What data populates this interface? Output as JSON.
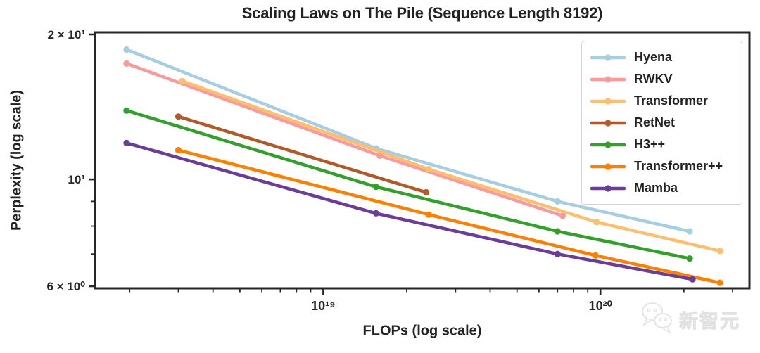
{
  "watermark": {
    "text": "新智元"
  },
  "chart_data": {
    "type": "line",
    "title": "Scaling Laws on The Pile (Sequence Length 8192)",
    "xlabel": "FLOPs (log scale)",
    "ylabel": "Perplexity (log scale)",
    "x_scale": "log",
    "y_scale": "log",
    "xlim": [
      1.5e+18,
      3.45e+20
    ],
    "ylim": [
      5.94,
      20.2
    ],
    "grid": false,
    "legend_position": "upper right",
    "axis_color": "#262626",
    "text_color": "#222222",
    "x_major_ticks": [
      {
        "label": "10¹⁹",
        "value": 1e+19
      },
      {
        "label": "10²⁰",
        "value": 1e+20
      }
    ],
    "x_minor_ticks": [
      2e+18,
      3e+18,
      4e+18,
      5e+18,
      6e+18,
      7e+18,
      8e+18,
      9e+18,
      2e+19,
      3e+19,
      4e+19,
      5e+19,
      6e+19,
      7e+19,
      8e+19,
      9e+19,
      2e+20,
      3e+20
    ],
    "y_major_ticks": [
      {
        "label": "2 × 10¹",
        "value": 20
      },
      {
        "label": "10¹",
        "value": 10
      },
      {
        "label": "6 × 10⁰",
        "value": 6
      }
    ],
    "y_minor_ticks": [
      9,
      8,
      7
    ],
    "series": [
      {
        "name": "Hyena",
        "color": "#a6cee3",
        "points": [
          [
            1.95e+18,
            18.6
          ],
          [
            1.55e+19,
            11.6
          ],
          [
            7e+19,
            9.0
          ],
          [
            2.1e+20,
            7.8
          ]
        ]
      },
      {
        "name": "RWKV",
        "color": "#fb9a99",
        "points": [
          [
            1.95e+18,
            17.4
          ],
          [
            1.6e+19,
            11.2
          ],
          [
            7.3e+19,
            8.4
          ]
        ]
      },
      {
        "name": "Transformer",
        "color": "#fdbf6f",
        "points": [
          [
            3.1e+18,
            16.0
          ],
          [
            2.4e+19,
            10.5
          ],
          [
            9.7e+19,
            8.15
          ],
          [
            2.7e+20,
            7.1
          ]
        ]
      },
      {
        "name": "RetNet",
        "color": "#b15928",
        "points": [
          [
            3e+18,
            13.5
          ],
          [
            2.35e+19,
            9.4
          ]
        ]
      },
      {
        "name": "H3++",
        "color": "#33a02c",
        "points": [
          [
            1.95e+18,
            13.9
          ],
          [
            1.55e+19,
            9.65
          ],
          [
            7e+19,
            7.8
          ],
          [
            2.1e+20,
            6.85
          ]
        ]
      },
      {
        "name": "Transformer++",
        "color": "#ff7f00",
        "points": [
          [
            3e+18,
            11.5
          ],
          [
            2.4e+19,
            8.45
          ],
          [
            9.6e+19,
            6.95
          ],
          [
            2.7e+20,
            6.1
          ]
        ]
      },
      {
        "name": "Mamba",
        "color": "#6a3d9a",
        "points": [
          [
            1.95e+18,
            11.9
          ],
          [
            1.55e+19,
            8.5
          ],
          [
            7e+19,
            7.0
          ],
          [
            2.15e+20,
            6.2
          ]
        ]
      }
    ]
  }
}
